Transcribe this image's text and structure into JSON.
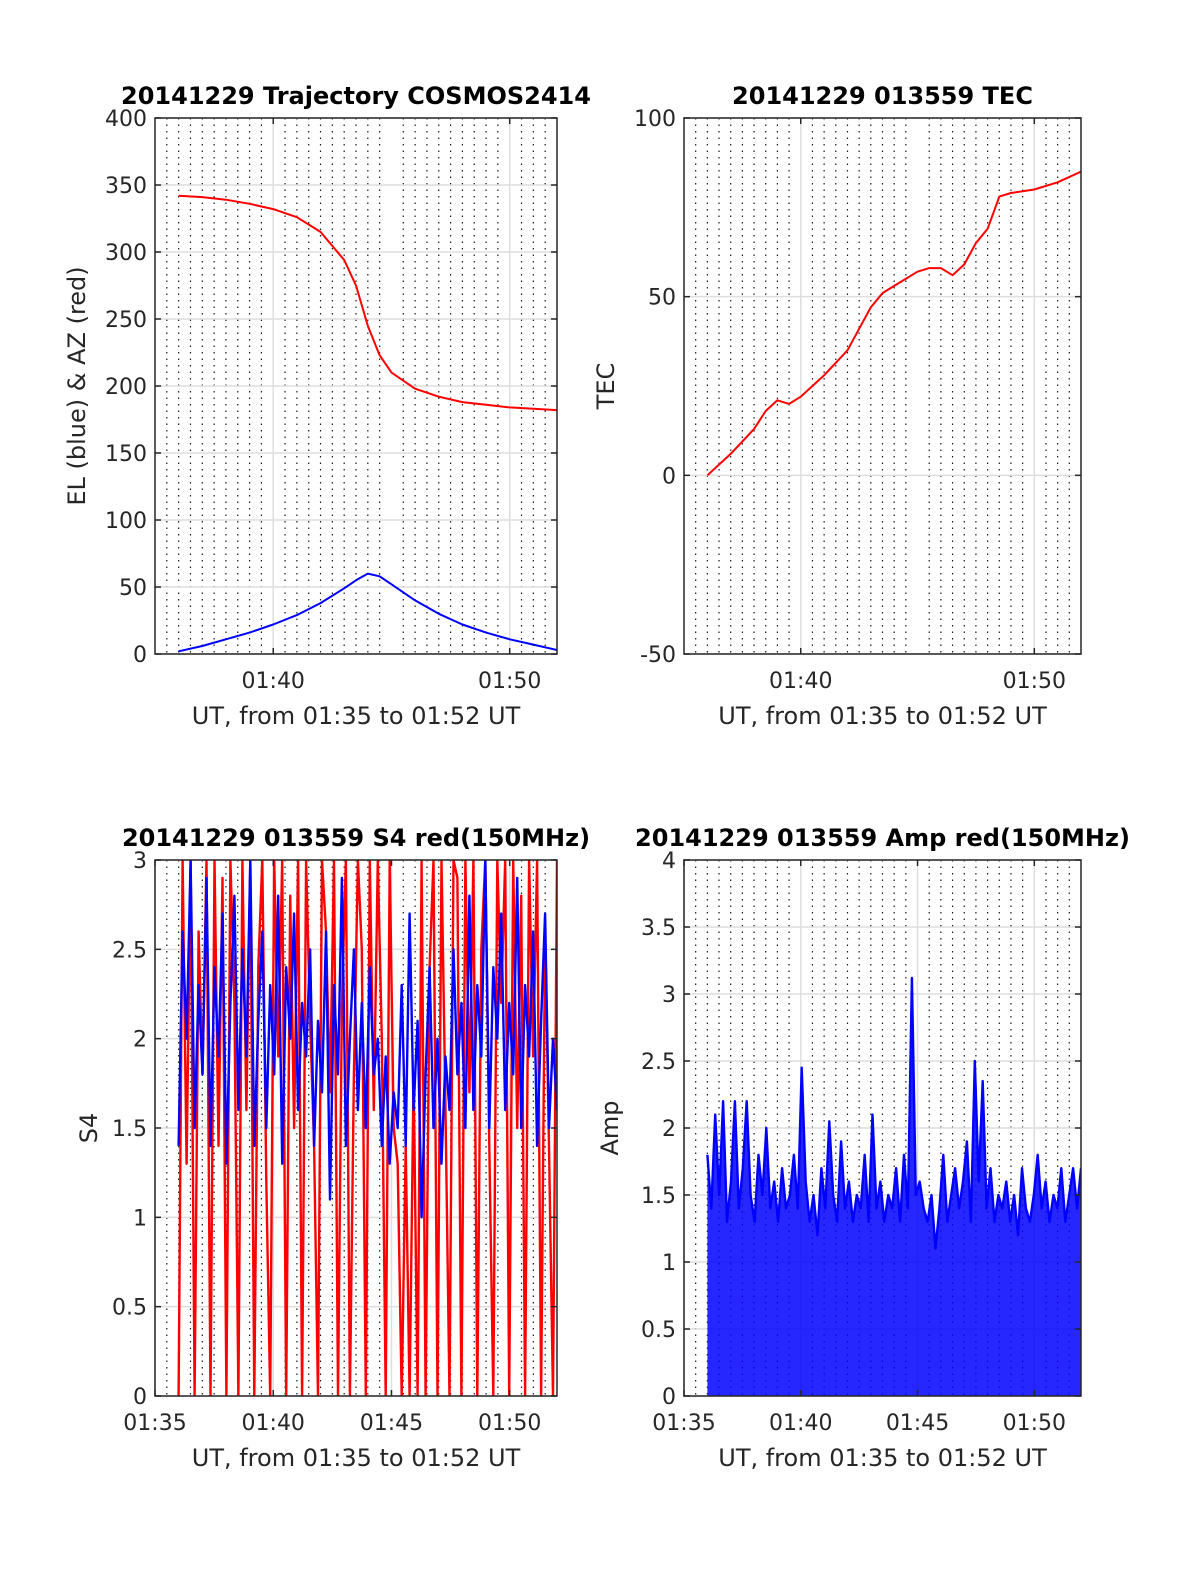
{
  "chart_data": [
    {
      "type": "line",
      "title": "20141229 Trajectory COSMOS2414",
      "xlabel": "UT, from 01:35 to 01:52 UT",
      "ylabel": "EL (blue) & AZ (red)",
      "xlim": [
        "01:35",
        "01:52"
      ],
      "ylim": [
        0,
        400
      ],
      "xticks": [
        "01:40",
        "01:50"
      ],
      "yticks": [
        "0",
        "50",
        "100",
        "150",
        "200",
        "250",
        "300",
        "350",
        "400"
      ],
      "grid": true,
      "series": [
        {
          "color": "#ff0000",
          "x": [
            "01:36",
            "01:37",
            "01:38",
            "01:39",
            "01:40",
            "01:41",
            "01:42",
            "01:43",
            "01:43:30",
            "01:44",
            "01:44:30",
            "01:45",
            "01:46",
            "01:47",
            "01:48",
            "01:49",
            "01:50",
            "01:51",
            "01:52"
          ],
          "values": [
            342,
            341,
            339,
            336,
            332,
            326,
            315,
            294,
            275,
            245,
            223,
            210,
            198,
            192,
            188,
            186,
            184,
            183,
            182
          ]
        },
        {
          "color": "#0000ff",
          "x": [
            "01:36",
            "01:37",
            "01:38",
            "01:39",
            "01:40",
            "01:41",
            "01:42",
            "01:43",
            "01:43:30",
            "01:44",
            "01:44:30",
            "01:45",
            "01:46",
            "01:47",
            "01:48",
            "01:49",
            "01:50",
            "01:51",
            "01:52"
          ],
          "values": [
            2,
            6,
            11,
            16,
            22,
            29,
            38,
            49,
            55,
            60,
            58,
            52,
            40,
            30,
            22,
            16,
            11,
            7,
            3
          ]
        }
      ]
    },
    {
      "type": "line",
      "title": "20141229 013559 TEC",
      "xlabel": "UT, from 01:35 to 01:52 UT",
      "ylabel": "TEC",
      "xlim": [
        "01:35",
        "01:52"
      ],
      "ylim": [
        -50,
        100
      ],
      "xticks": [
        "01:40",
        "01:50"
      ],
      "yticks": [
        "-50",
        "0",
        "50",
        "100"
      ],
      "grid": true,
      "series": [
        {
          "color": "#ff0000",
          "x": [
            "01:36",
            "01:37",
            "01:38",
            "01:38:30",
            "01:39",
            "01:39:30",
            "01:40",
            "01:41",
            "01:42",
            "01:42:30",
            "01:43",
            "01:43:30",
            "01:44",
            "01:45",
            "01:45:30",
            "01:46",
            "01:46:30",
            "01:47",
            "01:47:30",
            "01:48",
            "01:48:30",
            "01:49",
            "01:50",
            "01:51",
            "01:52"
          ],
          "values": [
            0,
            6,
            13,
            18,
            21,
            20,
            22,
            28,
            35,
            41,
            47,
            51,
            53,
            57,
            58,
            58,
            56,
            59,
            65,
            69,
            78,
            79,
            80,
            82,
            85
          ]
        }
      ]
    },
    {
      "type": "line",
      "title": "20141229 013559 S4 red(150MHz)",
      "xlabel": "UT, from 01:35 to 01:52 UT",
      "ylabel": "S4",
      "xlim": [
        "01:35",
        "01:52"
      ],
      "ylim": [
        0,
        3
      ],
      "xticks": [
        "01:35",
        "01:40",
        "01:45",
        "01:50"
      ],
      "yticks": [
        "0",
        "0.5",
        "1",
        "1.5",
        "2",
        "2.5",
        "3"
      ],
      "grid": true,
      "x_start": "01:36",
      "x_end": "01:52",
      "series": [
        {
          "color": "#ff0000",
          "values": [
            0,
            3,
            1.3,
            3,
            0,
            2.6,
            1.8,
            3,
            0,
            3,
            1.4,
            2.9,
            0,
            3,
            2.2,
            0,
            3,
            1.6,
            3,
            0,
            2.4,
            3,
            1.2,
            0,
            3,
            1.9,
            3,
            0,
            2.8,
            1.5,
            3,
            0,
            3,
            2.1,
            1.4,
            0,
            3,
            2.6,
            1.7,
            3,
            0,
            2.2,
            3,
            0,
            1.8,
            3,
            2.5,
            0,
            3,
            1.6,
            3,
            2.0,
            0,
            3,
            1.5,
            1.3,
            0,
            1.4,
            0,
            1.8,
            0,
            3,
            0,
            2.4,
            3,
            0,
            3,
            1.6,
            0,
            3,
            2.9,
            0,
            3,
            1.7,
            3,
            0,
            2.5,
            3,
            1.4,
            0,
            3,
            2.2,
            3,
            0,
            3,
            1.5,
            2.8,
            0,
            3,
            1.9,
            3,
            0,
            2.6,
            1.4,
            0,
            3
          ]
        },
        {
          "color": "#0000ff",
          "values": [
            1.4,
            2.6,
            2.0,
            3,
            1.5,
            2.3,
            1.8,
            2.9,
            1.4,
            2.4,
            1.9,
            2.7,
            1.3,
            2.2,
            2.8,
            1.6,
            2.5,
            1.9,
            3,
            1.4,
            2.1,
            2.6,
            1.5,
            2.3,
            1.8,
            2.8,
            1.3,
            2.4,
            2.0,
            2.7,
            1.6,
            2.2,
            1.9,
            2.5,
            1.4,
            2.1,
            1.7,
            2.6,
            1.1,
            2.3,
            1.8,
            2.9,
            1.4,
            2.0,
            2.5,
            1.6,
            2.2,
            1.5,
            2.4,
            1.8,
            2.0,
            1.4,
            1.9,
            1.3,
            1.7,
            1.5,
            2.3,
            1.4,
            2.7,
            1.6,
            2.1,
            1.0,
            1.8,
            2.4,
            1.5,
            2.0,
            1.3,
            1.9,
            1.6,
            2.5,
            1.8,
            2.2,
            1.5,
            2.8,
            1.6,
            2.3,
            1.9,
            3,
            1.5,
            2.4,
            2.0,
            2.7,
            1.6,
            2.2,
            1.8,
            2.9,
            1.5,
            2.3,
            1.9,
            2.6,
            1.4,
            2.1,
            2.7,
            1.5,
            2.0,
            1.6
          ]
        }
      ]
    },
    {
      "type": "line",
      "title": "20141229 013559 Amp red(150MHz)",
      "xlabel": "UT, from 01:35 to 01:52 UT",
      "ylabel": "Amp",
      "xlim": [
        "01:35",
        "01:52"
      ],
      "ylim": [
        0,
        4
      ],
      "xticks": [
        "01:35",
        "01:40",
        "01:45",
        "01:50"
      ],
      "yticks": [
        "0",
        "0.5",
        "1",
        "1.5",
        "2",
        "2.5",
        "3",
        "3.5",
        "4"
      ],
      "grid": true,
      "x_start": "01:36",
      "x_end": "01:52",
      "series": [
        {
          "color": "#0000ff",
          "values": [
            1.8,
            1.4,
            2.1,
            1.5,
            2.2,
            1.3,
            1.6,
            2.2,
            1.4,
            1.7,
            2.2,
            1.5,
            1.3,
            1.8,
            1.5,
            2.0,
            1.4,
            1.6,
            1.3,
            1.7,
            1.4,
            1.5,
            1.8,
            1.4,
            2.45,
            1.6,
            1.3,
            1.5,
            1.2,
            1.7,
            1.4,
            2.05,
            1.5,
            1.3,
            1.9,
            1.4,
            1.6,
            1.3,
            1.5,
            1.4,
            1.8,
            1.3,
            2.1,
            1.4,
            1.6,
            1.3,
            1.5,
            1.4,
            1.7,
            1.3,
            1.8,
            1.4,
            3.12,
            1.5,
            1.6,
            1.4,
            1.3,
            1.5,
            1.1,
            1.4,
            1.8,
            1.3,
            1.5,
            1.7,
            1.4,
            1.6,
            1.9,
            1.3,
            2.5,
            1.6,
            2.35,
            1.4,
            1.7,
            1.3,
            1.5,
            1.4,
            1.6,
            1.3,
            1.5,
            1.2,
            1.7,
            1.4,
            1.3,
            1.5,
            1.8,
            1.4,
            1.6,
            1.3,
            1.5,
            1.4,
            1.7,
            1.3,
            1.5,
            1.7,
            1.4,
            1.7
          ]
        }
      ]
    }
  ]
}
